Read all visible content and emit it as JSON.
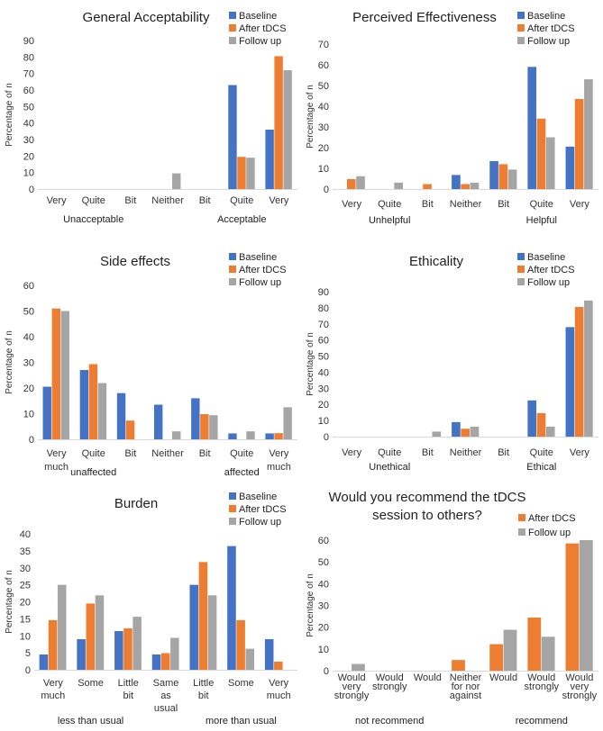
{
  "colors": {
    "Baseline": "#4472C4",
    "After tDCS": "#ED7D31",
    "Follow up": "#A5A5A5"
  },
  "chart_data": [
    {
      "type": "bar",
      "title": [
        "General Acceptability"
      ],
      "ylabel": "Percentage of n",
      "ylim": [
        0,
        90
      ],
      "yticks": [
        0,
        10,
        20,
        30,
        40,
        50,
        60,
        70,
        80,
        90
      ],
      "categories": [
        "Very",
        "Quite",
        "Bit",
        "Neither",
        "Bit",
        "Quite",
        "Very"
      ],
      "groups": [
        {
          "label": "Unacceptable",
          "start": 0,
          "end": 2
        },
        {
          "label": "Acceptable",
          "start": 4,
          "end": 6
        }
      ],
      "series": [
        {
          "name": "Baseline",
          "values": [
            0,
            0,
            0,
            0,
            0,
            63,
            36
          ]
        },
        {
          "name": "After tDCS",
          "values": [
            0,
            0,
            0,
            0,
            0,
            19.5,
            80.5
          ]
        },
        {
          "name": "Follow up",
          "values": [
            0,
            0,
            0,
            9.5,
            0,
            19,
            72
          ]
        }
      ]
    },
    {
      "type": "bar",
      "title": [
        "Perceived Effectiveness"
      ],
      "ylabel": "Percentage of n",
      "ylim": [
        0,
        70
      ],
      "yticks": [
        0,
        10,
        20,
        30,
        40,
        50,
        60,
        70
      ],
      "categories": [
        "Very",
        "Quite",
        "Bit",
        "Neither",
        "Bit",
        "Quite",
        "Very"
      ],
      "groups": [
        {
          "label": "Unhelpful",
          "start": 0,
          "end": 2
        },
        {
          "label": "Helpful",
          "start": 4,
          "end": 6
        }
      ],
      "series": [
        {
          "name": "Baseline",
          "values": [
            0,
            0,
            0,
            6.8,
            13.5,
            59,
            20.5
          ]
        },
        {
          "name": "After tDCS",
          "values": [
            4.8,
            0,
            2.4,
            2.4,
            12,
            34,
            43.5
          ]
        },
        {
          "name": "Follow up",
          "values": [
            6.2,
            3.1,
            0,
            3.1,
            9.4,
            25,
            53
          ]
        }
      ]
    },
    {
      "type": "bar",
      "title": [
        "Side effects"
      ],
      "ylabel": "Percentage of n",
      "ylim": [
        0,
        60
      ],
      "yticks": [
        0,
        10,
        20,
        30,
        40,
        50,
        60
      ],
      "categories": [
        "Very much",
        "Quite",
        "Bit",
        "Neither",
        "Bit",
        "Quite",
        "Very much"
      ],
      "groups": [
        {
          "label": "unaffected",
          "start": 0,
          "end": 2
        },
        {
          "label": "affected",
          "start": 4,
          "end": 6
        }
      ],
      "series": [
        {
          "name": "Baseline",
          "values": [
            20.5,
            27,
            18,
            13.5,
            16,
            2.3,
            2.3
          ]
        },
        {
          "name": "After tDCS",
          "values": [
            51,
            29.3,
            7.3,
            0,
            9.8,
            0,
            2.4
          ]
        },
        {
          "name": "Follow up",
          "values": [
            50,
            21.9,
            0,
            3.1,
            9.4,
            3.1,
            12.5
          ]
        }
      ]
    },
    {
      "type": "bar",
      "title": [
        "Ethicality"
      ],
      "ylabel": "Percentage of n",
      "ylim": [
        0,
        90
      ],
      "yticks": [
        0,
        10,
        20,
        30,
        40,
        50,
        60,
        70,
        80,
        90
      ],
      "categories": [
        "Very",
        "Quite",
        "Bit",
        "Neither",
        "Bit",
        "Quite",
        "Very"
      ],
      "groups": [
        {
          "label": "Unethical",
          "start": 0,
          "end": 2
        },
        {
          "label": "Ethical",
          "start": 4,
          "end": 6
        }
      ],
      "series": [
        {
          "name": "Baseline",
          "values": [
            0,
            0,
            0,
            9,
            0,
            22.5,
            68
          ]
        },
        {
          "name": "After tDCS",
          "values": [
            0,
            0,
            0,
            4.9,
            0,
            14.6,
            80.5
          ]
        },
        {
          "name": "Follow up",
          "values": [
            0,
            0,
            3.1,
            6.2,
            0,
            6.2,
            84.5
          ]
        }
      ]
    },
    {
      "type": "bar",
      "title": [
        "Burden"
      ],
      "ylabel": "Percentage of n",
      "ylim": [
        0,
        40
      ],
      "yticks": [
        0,
        5,
        10,
        15,
        20,
        25,
        30,
        35,
        40
      ],
      "categories": [
        "Very much",
        "Some",
        "Little bit",
        "Same as usual",
        "Little bit",
        "Some",
        "Very much"
      ],
      "groups": [
        {
          "label": "less than usual",
          "start": 0,
          "end": 2
        },
        {
          "label": "more than usual",
          "start": 4,
          "end": 6
        }
      ],
      "series": [
        {
          "name": "Baseline",
          "values": [
            4.5,
            9,
            11.4,
            4.5,
            25,
            36.4,
            9
          ]
        },
        {
          "name": "After tDCS",
          "values": [
            14.6,
            19.5,
            12.2,
            4.9,
            31.7,
            14.6,
            2.4
          ]
        },
        {
          "name": "Follow up",
          "values": [
            25,
            21.9,
            15.6,
            9.4,
            21.9,
            6.2,
            0
          ]
        }
      ]
    },
    {
      "type": "bar",
      "title": [
        "Would you recommend the tDCS",
        "session to others?"
      ],
      "ylabel": "Percentage of n",
      "ylim": [
        0,
        60
      ],
      "yticks": [
        0,
        10,
        20,
        30,
        40,
        50,
        60
      ],
      "categories": [
        "Would very strongly",
        "Would strongly",
        "Would",
        "Neither for nor against",
        "Would",
        "Would strongly",
        "Would very strongly"
      ],
      "groups": [
        {
          "label": "not recommend",
          "start": 0,
          "end": 2
        },
        {
          "label": "recommend",
          "start": 4,
          "end": 6
        }
      ],
      "series": [
        {
          "name": "After tDCS",
          "values": [
            0,
            0,
            0,
            4.9,
            12.2,
            24.4,
            58.5
          ]
        },
        {
          "name": "Follow up",
          "values": [
            3.1,
            0,
            0,
            0,
            18.8,
            15.6,
            60
          ]
        }
      ]
    }
  ]
}
